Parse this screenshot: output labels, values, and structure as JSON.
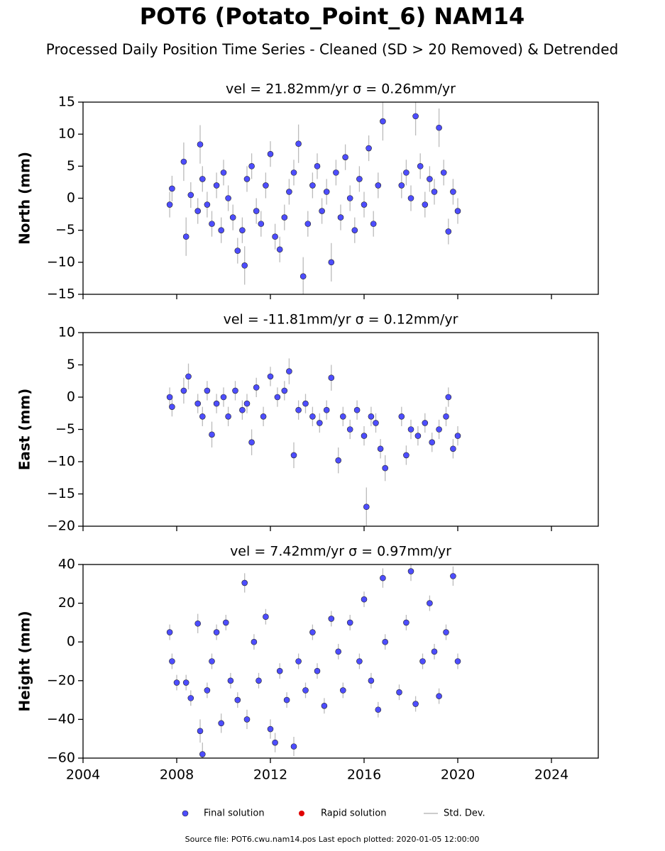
{
  "title": "POT6 (Potato_Point_6) NAM14",
  "subtitle": "Processed Daily Position Time Series - Cleaned (SD > 20 Removed) & Detrended",
  "footer": "Source file: POT6.cwu.nam14.pos  Last epoch plotted: 2020-01-05 12:00:00",
  "error_label": "Std. Dev.",
  "error_color": "#bbbbbb",
  "chart_data": [
    {
      "type": "scatter",
      "title": "vel = 21.82mm/yr   σ = 0.26mm/yr",
      "y_label": "North (mm)",
      "xlim": [
        2004,
        2026
      ],
      "xticks": [
        2004,
        2008,
        2012,
        2016,
        2020,
        2024
      ],
      "ylim": [
        -15,
        15
      ],
      "yticks": [
        {
          "value": -15,
          "label": "−15"
        },
        {
          "value": -10,
          "label": "−10"
        },
        {
          "value": -5,
          "label": "−5"
        },
        0,
        5,
        10,
        15
      ],
      "series": [
        {
          "name": "Final solution",
          "color": "#4d4dff",
          "x": [
            2007.7,
            2007.8,
            2008.3,
            2008.4,
            2008.6,
            2008.9,
            2009.0,
            2009.1,
            2009.3,
            2009.5,
            2009.7,
            2009.9,
            2010.0,
            2010.2,
            2010.4,
            2010.6,
            2010.8,
            2010.9,
            2011.0,
            2011.2,
            2011.4,
            2011.6,
            2011.8,
            2012.0,
            2012.2,
            2012.4,
            2012.6,
            2012.8,
            2013.0,
            2013.2,
            2013.4,
            2013.6,
            2013.8,
            2014.0,
            2014.2,
            2014.4,
            2014.6,
            2014.8,
            2015.0,
            2015.2,
            2015.4,
            2015.6,
            2015.8,
            2016.0,
            2016.2,
            2016.4,
            2016.6,
            2016.8,
            2017.6,
            2017.8,
            2018.0,
            2018.2,
            2018.4,
            2018.6,
            2018.8,
            2019.0,
            2019.2,
            2019.4,
            2019.6,
            2019.8,
            2020.0
          ],
          "values": [
            -1,
            1.5,
            5.7,
            -6,
            0.5,
            -2,
            8.4,
            3,
            -1,
            -4,
            2,
            -5,
            4,
            0,
            -3,
            -8.2,
            -5,
            -10.5,
            3,
            5,
            -2,
            -4,
            2,
            6.9,
            -6,
            -8,
            -3,
            1,
            4,
            8.5,
            -12.2,
            -4,
            2,
            5,
            -2,
            1,
            -10,
            4,
            -3,
            6.4,
            0,
            -5,
            3,
            -1,
            7.8,
            -4,
            2,
            12,
            2,
            4,
            0,
            12.8,
            5,
            -1,
            3,
            1,
            11,
            4,
            -5.2,
            1,
            -2
          ],
          "errors": [
            2,
            2,
            3,
            3,
            2,
            2,
            3,
            2,
            2,
            2,
            2,
            2,
            2,
            2,
            2,
            2,
            2,
            3,
            2,
            2,
            2,
            2,
            2,
            2,
            2,
            2,
            2,
            2,
            2,
            3,
            3,
            2,
            2,
            2,
            2,
            2,
            3,
            2,
            2,
            2,
            2,
            2,
            2,
            2,
            2,
            2,
            2,
            3,
            2,
            2,
            2,
            3,
            2,
            2,
            2,
            2,
            3,
            2,
            2,
            2,
            2
          ]
        },
        {
          "name": "Rapid solution",
          "color": "#e00000",
          "x": [],
          "values": [],
          "errors": []
        }
      ]
    },
    {
      "type": "scatter",
      "title": "vel = -11.81mm/yr   σ = 0.12mm/yr",
      "y_label": "East (mm)",
      "xlim": [
        2004,
        2026
      ],
      "xticks": [
        2004,
        2008,
        2012,
        2016,
        2020,
        2024
      ],
      "ylim": [
        -20,
        10
      ],
      "yticks": [
        {
          "value": -20,
          "label": "−20"
        },
        {
          "value": -15,
          "label": "−15"
        },
        {
          "value": -10,
          "label": "−10"
        },
        {
          "value": -5,
          "label": "−5"
        },
        0,
        5,
        10
      ],
      "series": [
        {
          "color": "#4d4dff",
          "x": [
            2007.7,
            2007.8,
            2008.3,
            2008.5,
            2008.9,
            2009.1,
            2009.3,
            2009.5,
            2009.7,
            2010.0,
            2010.2,
            2010.5,
            2010.8,
            2011.0,
            2011.2,
            2011.4,
            2011.7,
            2012.0,
            2012.3,
            2012.6,
            2012.8,
            2013.0,
            2013.2,
            2013.5,
            2013.8,
            2014.1,
            2014.4,
            2014.6,
            2014.9,
            2015.1,
            2015.4,
            2015.7,
            2016.0,
            2016.1,
            2016.3,
            2016.5,
            2016.7,
            2016.9,
            2017.6,
            2017.8,
            2018.0,
            2018.3,
            2018.6,
            2018.9,
            2019.2,
            2019.5,
            2019.6,
            2019.8,
            2020.0
          ],
          "values": [
            0,
            -1.5,
            1,
            3.2,
            -1,
            -3,
            1,
            -5.8,
            -1,
            0,
            -3,
            1,
            -2,
            -1,
            -7,
            1.5,
            -3,
            3.2,
            0,
            1,
            4,
            -9,
            -2,
            -1,
            -3,
            -4,
            -2,
            3,
            -9.8,
            -3,
            -5,
            -2,
            -6,
            -17,
            -3,
            -4,
            -8,
            -11,
            -3,
            -9,
            -5,
            -6,
            -4,
            -7,
            -5,
            -3,
            0,
            -8,
            -6
          ],
          "errors": [
            1.5,
            1.5,
            2,
            2,
            1.5,
            1.5,
            1.5,
            2,
            1.5,
            1.5,
            1.5,
            1.5,
            1.5,
            1.5,
            2,
            1.5,
            1.5,
            1.5,
            1.5,
            1.5,
            2,
            2,
            1.5,
            1.5,
            1.5,
            1.5,
            1.5,
            2,
            2,
            1.5,
            1.5,
            1.5,
            1.5,
            3,
            1.5,
            1.5,
            1.5,
            2,
            1.5,
            1.5,
            1.5,
            1.5,
            1.5,
            1.5,
            1.5,
            1.5,
            1.5,
            1.5,
            1.5
          ]
        }
      ]
    },
    {
      "type": "scatter",
      "title": "vel = 7.42mm/yr   σ = 0.97mm/yr",
      "y_label": "Height (mm)",
      "xlim": [
        2004,
        2026
      ],
      "xticks": [
        2004,
        2008,
        2012,
        2016,
        2020,
        2024
      ],
      "ylim": [
        -60,
        40
      ],
      "yticks": [
        {
          "value": -60,
          "label": "−60"
        },
        {
          "value": -40,
          "label": "−40"
        },
        {
          "value": -20,
          "label": "−20"
        },
        0,
        20,
        40
      ],
      "series": [
        {
          "color": "#4d4dff",
          "x": [
            2007.7,
            2007.8,
            2008.0,
            2008.4,
            2008.6,
            2008.9,
            2009.0,
            2009.1,
            2009.3,
            2009.5,
            2009.7,
            2009.9,
            2010.1,
            2010.3,
            2010.6,
            2010.9,
            2011.0,
            2011.3,
            2011.5,
            2011.8,
            2012.0,
            2012.2,
            2012.4,
            2012.7,
            2013.0,
            2013.2,
            2013.5,
            2013.8,
            2014.0,
            2014.3,
            2014.6,
            2014.9,
            2015.1,
            2015.4,
            2015.8,
            2016.0,
            2016.3,
            2016.6,
            2016.8,
            2016.9,
            2017.5,
            2017.8,
            2018.0,
            2018.2,
            2018.5,
            2018.8,
            2019.0,
            2019.2,
            2019.5,
            2019.8,
            2020.0
          ],
          "values": [
            5,
            -10,
            -21,
            -21,
            -29,
            9.5,
            -46,
            -58,
            -25,
            -10,
            5,
            -42,
            10,
            -20,
            -30,
            30.5,
            -40,
            0,
            -20,
            13,
            -45,
            -52,
            -15,
            -30,
            -54,
            -10,
            -25,
            5,
            -15,
            -33,
            12,
            -5,
            -25,
            10,
            -10,
            22,
            -20,
            -35,
            33,
            0,
            -26,
            10,
            36.5,
            -32,
            -10,
            20,
            -5,
            -28,
            5,
            34,
            -10
          ],
          "errors": [
            4,
            4,
            4,
            4,
            4,
            5,
            6,
            6,
            4,
            4,
            4,
            5,
            4,
            4,
            4,
            5,
            5,
            4,
            4,
            4,
            5,
            5,
            4,
            4,
            5,
            4,
            4,
            4,
            4,
            4,
            4,
            4,
            4,
            4,
            4,
            4,
            4,
            4,
            5,
            4,
            4,
            4,
            5,
            4,
            4,
            4,
            4,
            4,
            4,
            5,
            4
          ]
        }
      ]
    }
  ]
}
